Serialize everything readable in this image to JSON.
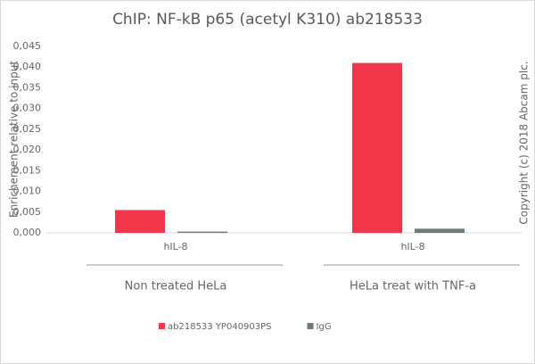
{
  "chart_data": {
    "type": "bar",
    "title": "ChIP: NF-kB p65 (acetyl K310) ab218533",
    "y_label": "Enrichement relative to input",
    "annotation": "Copyright (c) 2018 Abcam plc.",
    "categories": [
      "hIL-8",
      "hIL-8"
    ],
    "groups": [
      "Non treated HeLa",
      "HeLa treat with TNF-a"
    ],
    "series": [
      {
        "name": "ab218533 YP040903PS",
        "color": "#f2364c",
        "values": [
          0.0055,
          0.041
        ]
      },
      {
        "name": "IgG",
        "color": "#6e7c74",
        "values": [
          0.0003,
          0.001
        ]
      }
    ],
    "ylim": [
      0,
      0.045
    ],
    "yticks": [
      {
        "value": 0,
        "label": "0,000"
      },
      {
        "value": 0.005,
        "label": "0,005"
      },
      {
        "value": 0.01,
        "label": "0,010"
      },
      {
        "value": 0.015,
        "label": "0,015"
      },
      {
        "value": 0.02,
        "label": "0,020"
      },
      {
        "value": 0.025,
        "label": "0,025"
      },
      {
        "value": 0.03,
        "label": "0,030"
      },
      {
        "value": 0.035,
        "label": "0,035"
      },
      {
        "value": 0.04,
        "label": "0,040"
      },
      {
        "value": 0.045,
        "label": "0,045"
      }
    ],
    "legend": "bottom"
  }
}
